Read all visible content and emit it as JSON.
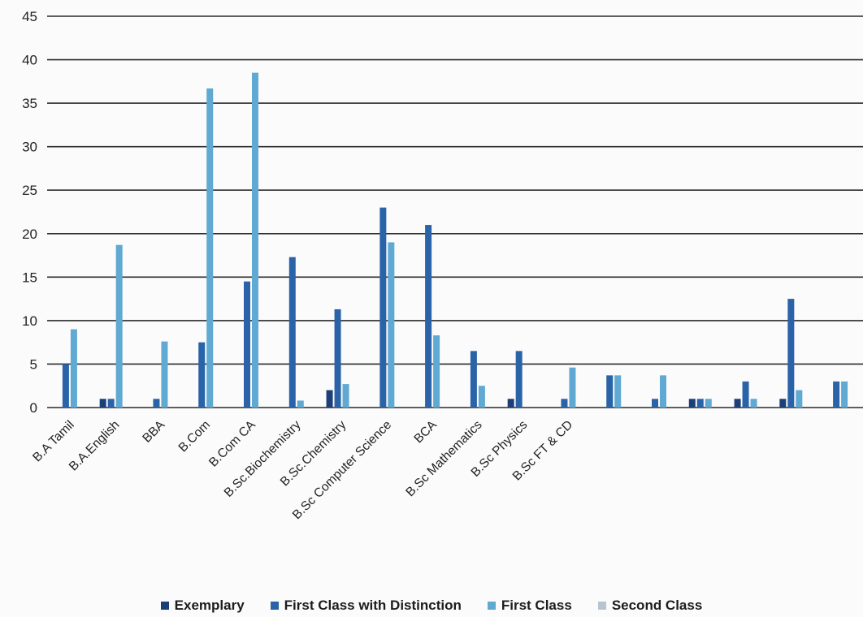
{
  "chart_data": {
    "type": "bar",
    "title": "",
    "xlabel": "",
    "ylabel": "",
    "ylim": [
      0,
      45
    ],
    "yticks": [
      0,
      5,
      10,
      15,
      20,
      25,
      30,
      35,
      40,
      45
    ],
    "grid": true,
    "legend_position": "bottom",
    "categories": [
      "B.A Tamil",
      "B.A.English",
      "BBA",
      "B.Com",
      "B.Com CA",
      "B.Sc.Biochemistry",
      "B.Sc.Chemistry",
      "B.Sc Computer Science",
      "BCA",
      "B.Sc Mathematics",
      "B.Sc Physics",
      "B.Sc FT & CD",
      "",
      "",
      "",
      "",
      "",
      ""
    ],
    "series": [
      {
        "name": "Exemplary",
        "color": "#1d3f78",
        "values": [
          0,
          1,
          0,
          0,
          0,
          0,
          2,
          0,
          0,
          0,
          1,
          0,
          0,
          0,
          1,
          1,
          1,
          0
        ]
      },
      {
        "name": "First Class with Distinction",
        "color": "#2a63a8",
        "values": [
          5,
          1,
          1,
          7.5,
          14.5,
          17.3,
          11.3,
          23,
          21,
          6.5,
          6.5,
          1,
          3.7,
          1,
          1,
          3,
          12.5,
          3
        ]
      },
      {
        "name": "First Class",
        "color": "#5fa9d3",
        "values": [
          9,
          18.7,
          7.6,
          36.7,
          38.5,
          0.8,
          2.7,
          19,
          8.3,
          2.5,
          0,
          4.6,
          3.7,
          3.7,
          1,
          1,
          2,
          3
        ]
      },
      {
        "name": "Second Class",
        "color": "#b9c4d0",
        "values": [
          0,
          0,
          0,
          0,
          0,
          0,
          0,
          0,
          0,
          0,
          0,
          0,
          0,
          0,
          0,
          0,
          0,
          0
        ]
      }
    ]
  }
}
